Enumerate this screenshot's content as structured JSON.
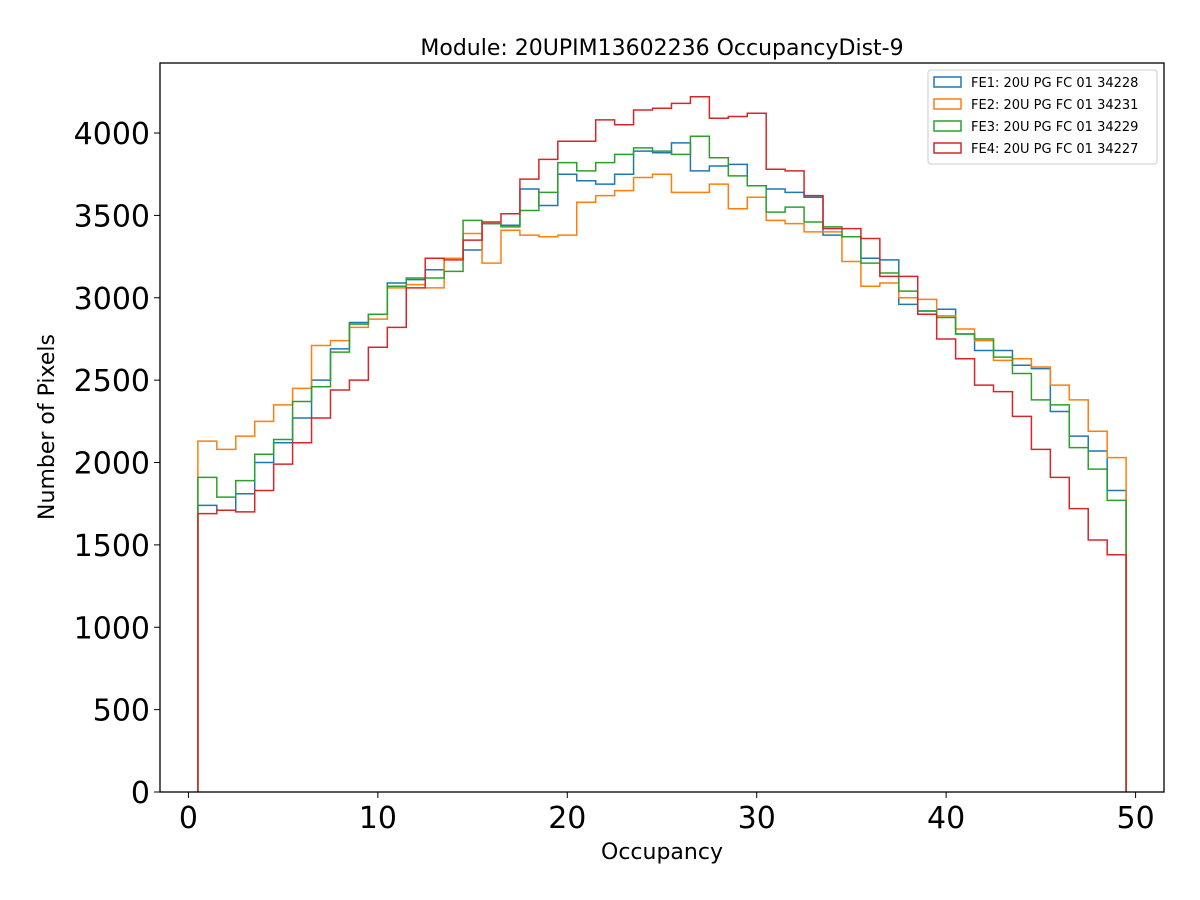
{
  "chart_data": {
    "type": "step-histogram",
    "title": "Module: 20UPIM13602236 OccupancyDist-9",
    "xlabel": "Occupancy",
    "ylabel": "Number of Pixels",
    "xlim": [
      -1.5,
      51.5
    ],
    "ylim": [
      0,
      4425
    ],
    "xticks": [
      0,
      10,
      20,
      30,
      40,
      50
    ],
    "yticks": [
      0,
      500,
      1000,
      1500,
      2000,
      2500,
      3000,
      3500,
      4000
    ],
    "bin_edges_start": 0.5,
    "bin_width": 1,
    "legend_position": "top-right",
    "series": [
      {
        "name": "FE1: 20U PG FC 01 34228",
        "color": "#1f77b4",
        "values": [
          1740,
          1710,
          1810,
          2000,
          2120,
          2270,
          2500,
          2690,
          2850,
          2900,
          3090,
          3110,
          3170,
          3240,
          3290,
          3450,
          3440,
          3660,
          3560,
          3750,
          3710,
          3690,
          3750,
          3890,
          3880,
          3940,
          3770,
          3800,
          3810,
          3680,
          3660,
          3640,
          3610,
          3380,
          3370,
          3240,
          3230,
          2960,
          2920,
          2930,
          2780,
          2680,
          2680,
          2590,
          2570,
          2310,
          2160,
          2070,
          1830
        ]
      },
      {
        "name": "FE2: 20U PG FC 01 34231",
        "color": "#ff7f0e",
        "values": [
          2130,
          2080,
          2160,
          2250,
          2350,
          2450,
          2710,
          2740,
          2820,
          2870,
          3060,
          3080,
          3060,
          3240,
          3390,
          3210,
          3410,
          3380,
          3370,
          3380,
          3580,
          3620,
          3650,
          3730,
          3750,
          3640,
          3640,
          3690,
          3540,
          3610,
          3470,
          3450,
          3400,
          3400,
          3220,
          3070,
          3090,
          3000,
          2990,
          2890,
          2810,
          2740,
          2620,
          2630,
          2580,
          2470,
          2380,
          2190,
          2030
        ]
      },
      {
        "name": "FE3: 20U PG FC 01 34229",
        "color": "#2ca02c",
        "values": [
          1910,
          1790,
          1890,
          2050,
          2140,
          2370,
          2460,
          2670,
          2840,
          2900,
          3070,
          3120,
          3120,
          3160,
          3470,
          3450,
          3430,
          3530,
          3640,
          3820,
          3770,
          3820,
          3870,
          3910,
          3890,
          3870,
          3980,
          3850,
          3740,
          3680,
          3520,
          3550,
          3460,
          3430,
          3370,
          3210,
          3150,
          3040,
          2920,
          2880,
          2780,
          2750,
          2640,
          2540,
          2380,
          2350,
          2090,
          1960,
          1770
        ]
      },
      {
        "name": "FE4: 20U PG FC 01 34227",
        "color": "#d62728",
        "values": [
          1690,
          1710,
          1700,
          1830,
          1990,
          2120,
          2270,
          2440,
          2500,
          2700,
          2820,
          3060,
          3240,
          3230,
          3350,
          3460,
          3510,
          3720,
          3840,
          3950,
          3950,
          4080,
          4050,
          4140,
          4150,
          4180,
          4220,
          4090,
          4100,
          4120,
          3780,
          3770,
          3620,
          3420,
          3420,
          3360,
          3130,
          3130,
          2900,
          2750,
          2630,
          2470,
          2430,
          2280,
          2080,
          1910,
          1720,
          1530,
          1440
        ]
      }
    ]
  }
}
